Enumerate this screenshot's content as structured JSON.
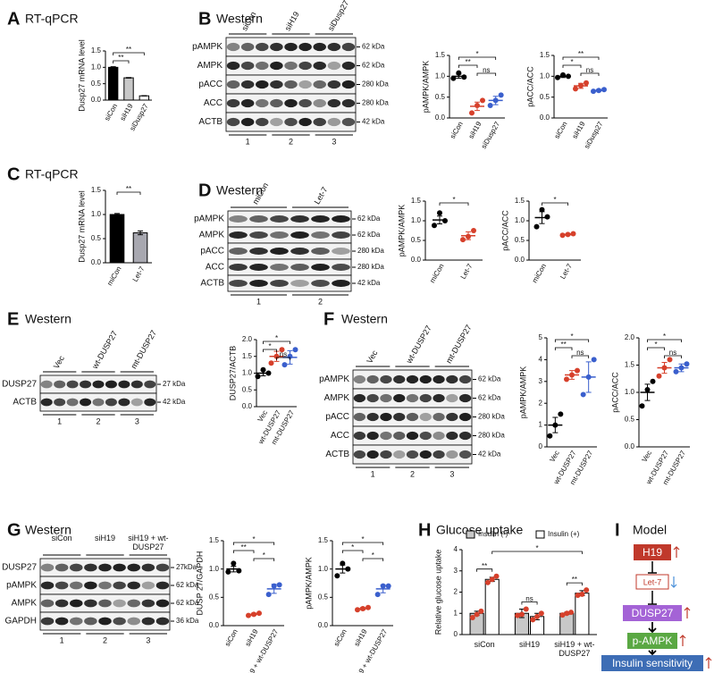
{
  "panels": [
    {
      "letter": "A",
      "title": "RT-qPCR"
    },
    {
      "letter": "B",
      "title": "Western"
    },
    {
      "letter": "C",
      "title": "RT-qPCR"
    },
    {
      "letter": "D",
      "title": "Western"
    },
    {
      "letter": "E",
      "title": "Western"
    },
    {
      "letter": "F",
      "title": "Western"
    },
    {
      "letter": "G",
      "title": "Western"
    },
    {
      "letter": "H",
      "title": "Glucose uptake"
    },
    {
      "letter": "I",
      "title": "Model"
    }
  ],
  "blots": [
    {
      "lanes": [
        "siCon",
        "siH19",
        "siDusp27"
      ],
      "rows": [
        {
          "name": "pAMPK",
          "kda": "62 kDa"
        },
        {
          "name": "AMPK",
          "kda": "62 kDa"
        },
        {
          "name": "pACC",
          "kda": "280 kDa"
        },
        {
          "name": "ACC",
          "kda": "280 kDa"
        },
        {
          "name": "ACTB",
          "kda": "42 kDa"
        }
      ],
      "numbers": [
        "1",
        "2",
        "3"
      ]
    },
    {
      "lanes": [
        "miCon",
        "Let-7"
      ],
      "rows": [
        {
          "name": "pAMPK",
          "kda": "62 kDa"
        },
        {
          "name": "AMPK",
          "kda": "62 kDa"
        },
        {
          "name": "pACC",
          "kda": "280 kDa"
        },
        {
          "name": "ACC",
          "kda": "280 kDa"
        },
        {
          "name": "ACTB",
          "kda": "42 kDa"
        }
      ],
      "numbers": [
        "1",
        "2"
      ]
    },
    {
      "lanes": [
        "Vec",
        "wt-DUSP27",
        "mt-DUSP27"
      ],
      "rows": [
        {
          "name": "DUSP27",
          "kda": "27 kDa"
        },
        {
          "name": "ACTB",
          "kda": "42 kDa"
        }
      ],
      "numbers": [
        "1",
        "2",
        "3"
      ]
    },
    {
      "lanes": [
        "Vec",
        "wt-DUSP27",
        "mt-DUSP27"
      ],
      "rows": [
        {
          "name": "pAMPK",
          "kda": "62 kDa"
        },
        {
          "name": "AMPK",
          "kda": "62 kDa"
        },
        {
          "name": "pACC",
          "kda": "280 kDa"
        },
        {
          "name": "ACC",
          "kda": "280 kDa"
        },
        {
          "name": "ACTB",
          "kda": "42 kDa"
        }
      ],
      "numbers": [
        "1",
        "2",
        "3"
      ]
    },
    {
      "lanes": [
        "siCon",
        "siH19",
        "siH19 + wt-DUSP27"
      ],
      "rows": [
        {
          "name": "DUSP27",
          "kda": "27kDa"
        },
        {
          "name": "pAMPK",
          "kda": "62 kDa"
        },
        {
          "name": "AMPK",
          "kda": "62 kDa"
        },
        {
          "name": "GAPDH",
          "kda": "36 kDa"
        }
      ],
      "numbers": [
        "1",
        "2",
        "3"
      ]
    }
  ],
  "chart_data": [
    {
      "type": "bar",
      "ylabel": "Dusp27 mRNA level",
      "categories": [
        "siCon",
        "siH19",
        "siDusp27"
      ],
      "values": [
        1.0,
        0.68,
        0.13
      ],
      "errors": [
        0.02,
        0.01,
        0.005
      ],
      "colors": [
        "#000000",
        "#c8c8c8",
        "#ffffff"
      ],
      "ylim": [
        0,
        1.5
      ],
      "yticks": [
        {
          "value": 0,
          "label": "0.0"
        },
        {
          "value": 0.5,
          "label": "0.5"
        },
        {
          "value": 1,
          "label": "1.0"
        },
        {
          "value": 1.5,
          "label": "1.5"
        }
      ],
      "annotations": [
        {
          "text": "**",
          "from": 0,
          "to": 2
        },
        {
          "text": "**",
          "from": 0,
          "to": 1
        }
      ]
    },
    {
      "type": "dot",
      "ylabel": "pAMPK/AMPK",
      "categories": [
        "siCon",
        "siH19",
        "siDusp27"
      ],
      "values": [
        1.0,
        0.28,
        0.42
      ],
      "errors": [
        0.05,
        0.1,
        0.1
      ],
      "points": [
        [
          0.95,
          1.08,
          0.98
        ],
        [
          0.12,
          0.3,
          0.42
        ],
        [
          0.3,
          0.42,
          0.55
        ]
      ],
      "colors": [
        "#000000",
        "#d6402b",
        "#3a5fcd"
      ],
      "ylim": [
        0,
        1.5
      ],
      "yticks": [
        {
          "value": 0,
          "label": "0.0"
        },
        {
          "value": 0.5,
          "label": "0.5"
        },
        {
          "value": 1,
          "label": "1.0"
        },
        {
          "value": 1.5,
          "label": "1.5"
        }
      ],
      "annotations": [
        {
          "text": "*",
          "from": 0,
          "to": 2
        },
        {
          "text": "**",
          "from": 0,
          "to": 1
        },
        {
          "text": "ns",
          "from": 1,
          "to": 2
        }
      ]
    },
    {
      "type": "dot",
      "ylabel": "pACC/ACC",
      "categories": [
        "siCon",
        "siH19",
        "siDusp27"
      ],
      "values": [
        1.0,
        0.77,
        0.66
      ],
      "errors": [
        0.03,
        0.06,
        0.02
      ],
      "points": [
        [
          0.97,
          1.03,
          1.0
        ],
        [
          0.7,
          0.78,
          0.84
        ],
        [
          0.64,
          0.66,
          0.68
        ]
      ],
      "colors": [
        "#000000",
        "#d6402b",
        "#3a5fcd"
      ],
      "ylim": [
        0,
        1.5
      ],
      "yticks": [
        {
          "value": 0,
          "label": "0.0"
        },
        {
          "value": 0.5,
          "label": "0.5"
        },
        {
          "value": 1,
          "label": "1.0"
        },
        {
          "value": 1.5,
          "label": "1.5"
        }
      ],
      "annotations": [
        {
          "text": "**",
          "from": 0,
          "to": 2
        },
        {
          "text": "*",
          "from": 0,
          "to": 1
        },
        {
          "text": "ns",
          "from": 1,
          "to": 2
        }
      ]
    },
    {
      "type": "bar",
      "ylabel": "Dusp27 mRNA level",
      "categories": [
        "miCon",
        "Let-7"
      ],
      "values": [
        1.0,
        0.62
      ],
      "errors": [
        0.02,
        0.04
      ],
      "colors": [
        "#000000",
        "#a8a8b0"
      ],
      "ylim": [
        0,
        1.5
      ],
      "yticks": [
        {
          "value": 0,
          "label": "0.0"
        },
        {
          "value": 0.5,
          "label": "0.5"
        },
        {
          "value": 1,
          "label": "1.0"
        },
        {
          "value": 1.5,
          "label": "1.5"
        }
      ],
      "annotations": [
        {
          "text": "**",
          "from": 0,
          "to": 1
        }
      ]
    },
    {
      "type": "dot",
      "ylabel": "pAMPK/AMPK",
      "categories": [
        "miCon",
        "Let-7"
      ],
      "values": [
        1.02,
        0.62
      ],
      "errors": [
        0.1,
        0.1
      ],
      "points": [
        [
          0.88,
          1.2,
          1.0
        ],
        [
          0.52,
          0.6,
          0.75
        ]
      ],
      "colors": [
        "#000000",
        "#d6402b"
      ],
      "ylim": [
        0,
        1.5
      ],
      "yticks": [
        {
          "value": 0,
          "label": "0.0"
        },
        {
          "value": 0.5,
          "label": "0.5"
        },
        {
          "value": 1,
          "label": "1.0"
        },
        {
          "value": 1.5,
          "label": "1.5"
        }
      ],
      "annotations": [
        {
          "text": "*",
          "from": 0,
          "to": 1
        }
      ]
    },
    {
      "type": "dot",
      "ylabel": "pACC/ACC",
      "categories": [
        "miCon",
        "Let-7"
      ],
      "values": [
        1.08,
        0.65
      ],
      "errors": [
        0.15,
        0.02
      ],
      "points": [
        [
          0.85,
          1.28,
          1.1
        ],
        [
          0.63,
          0.65,
          0.67
        ]
      ],
      "colors": [
        "#000000",
        "#d6402b"
      ],
      "ylim": [
        0,
        1.5
      ],
      "yticks": [
        {
          "value": 0,
          "label": "0.0"
        },
        {
          "value": 0.5,
          "label": "0.5"
        },
        {
          "value": 1,
          "label": "1.0"
        },
        {
          "value": 1.5,
          "label": "1.5"
        }
      ],
      "annotations": [
        {
          "text": "*",
          "from": 0,
          "to": 1
        }
      ]
    },
    {
      "type": "dot",
      "ylabel": "DUSP27/ACTB",
      "categories": [
        "Vec",
        "wt-DUSP27",
        "mt-DUSP27"
      ],
      "values": [
        1.0,
        1.5,
        1.47
      ],
      "errors": [
        0.08,
        0.15,
        0.2
      ],
      "points": [
        [
          0.9,
          1.1,
          1.0
        ],
        [
          1.3,
          1.5,
          1.7
        ],
        [
          1.25,
          1.5,
          1.7
        ]
      ],
      "colors": [
        "#000000",
        "#d6402b",
        "#3a5fcd"
      ],
      "ylim": [
        0,
        2
      ],
      "yticks": [
        {
          "value": 0,
          "label": "0.0"
        },
        {
          "value": 0.5,
          "label": "0.5"
        },
        {
          "value": 1,
          "label": "1.0"
        },
        {
          "value": 1.5,
          "label": "1.5"
        },
        {
          "value": 2,
          "label": "2.0"
        }
      ],
      "annotations": [
        {
          "text": "*",
          "from": 0,
          "to": 2
        },
        {
          "text": "*",
          "from": 0,
          "to": 1
        },
        {
          "text": "ns",
          "from": 1,
          "to": 2
        }
      ]
    },
    {
      "type": "dot",
      "ylabel": "pAMPK/AMPK",
      "categories": [
        "Vec",
        "wt-DUSP27",
        "mt-DUSP27"
      ],
      "values": [
        1.0,
        3.3,
        3.2
      ],
      "errors": [
        0.35,
        0.2,
        0.7
      ],
      "points": [
        [
          0.5,
          1.0,
          1.5
        ],
        [
          3.1,
          3.3,
          3.5
        ],
        [
          2.4,
          3.2,
          4.0
        ]
      ],
      "colors": [
        "#000000",
        "#d6402b",
        "#3a5fcd"
      ],
      "ylim": [
        0,
        5
      ],
      "yticks": [
        0,
        1,
        2,
        3,
        4,
        5
      ],
      "annotations": [
        {
          "text": "*",
          "from": 0,
          "to": 2
        },
        {
          "text": "**",
          "from": 0,
          "to": 1
        },
        {
          "text": "ns",
          "from": 1,
          "to": 2
        }
      ]
    },
    {
      "type": "dot",
      "ylabel": "pACC/ACC",
      "categories": [
        "Vec",
        "wt-DUSP27",
        "mt-DUSP27"
      ],
      "values": [
        1.0,
        1.45,
        1.45
      ],
      "errors": [
        0.15,
        0.1,
        0.07
      ],
      "points": [
        [
          0.75,
          1.05,
          1.2
        ],
        [
          1.3,
          1.45,
          1.6
        ],
        [
          1.38,
          1.45,
          1.52
        ]
      ],
      "colors": [
        "#000000",
        "#d6402b",
        "#3a5fcd"
      ],
      "ylim": [
        0,
        2
      ],
      "yticks": [
        {
          "value": 0,
          "label": "0.0"
        },
        {
          "value": 0.5,
          "label": "0.5"
        },
        {
          "value": 1,
          "label": "1.0"
        },
        {
          "value": 1.5,
          "label": "1.5"
        },
        {
          "value": 2,
          "label": "2.0"
        }
      ],
      "annotations": [
        {
          "text": "*",
          "from": 0,
          "to": 2
        },
        {
          "text": "*",
          "from": 0,
          "to": 1
        },
        {
          "text": "ns",
          "from": 1,
          "to": 2
        }
      ]
    },
    {
      "type": "dot",
      "ylabel": "DUSP 27/GAPDH",
      "categories": [
        "siCon",
        "siH19",
        "siH19 + wt-DUSP27"
      ],
      "values": [
        1.0,
        0.2,
        0.65
      ],
      "errors": [
        0.05,
        0.02,
        0.08
      ],
      "points": [
        [
          0.95,
          1.1,
          0.97
        ],
        [
          0.18,
          0.2,
          0.22
        ],
        [
          0.55,
          0.7,
          0.72
        ]
      ],
      "colors": [
        "#000000",
        "#d6402b",
        "#3a5fcd"
      ],
      "ylim": [
        0,
        1.5
      ],
      "yticks": [
        {
          "value": 0,
          "label": "0.0"
        },
        {
          "value": 0.5,
          "label": "0.5"
        },
        {
          "value": 1,
          "label": "1.0"
        },
        {
          "value": 1.5,
          "label": "1.5"
        }
      ],
      "annotations": [
        {
          "text": "*",
          "from": 0,
          "to": 2
        },
        {
          "text": "**",
          "from": 0,
          "to": 1
        },
        {
          "text": "*",
          "from": 1,
          "to": 2
        }
      ]
    },
    {
      "type": "dot",
      "ylabel": "pAMPK/AMPK",
      "categories": [
        "siCon",
        "siH19",
        "siH19 + wt-DUSP27"
      ],
      "values": [
        1.0,
        0.3,
        0.65
      ],
      "errors": [
        0.07,
        0.02,
        0.07
      ],
      "points": [
        [
          0.88,
          1.1,
          1.0
        ],
        [
          0.28,
          0.3,
          0.32
        ],
        [
          0.55,
          0.7,
          0.7
        ]
      ],
      "colors": [
        "#000000",
        "#d6402b",
        "#3a5fcd"
      ],
      "ylim": [
        0,
        1.5
      ],
      "yticks": [
        {
          "value": 0,
          "label": "0.0"
        },
        {
          "value": 0.5,
          "label": "0.5"
        },
        {
          "value": 1,
          "label": "1.0"
        },
        {
          "value": 1.5,
          "label": "1.5"
        }
      ],
      "annotations": [
        {
          "text": "*",
          "from": 0,
          "to": 2
        },
        {
          "text": "*",
          "from": 0,
          "to": 1
        },
        {
          "text": "*",
          "from": 1,
          "to": 2
        }
      ]
    },
    {
      "type": "grouped_bar",
      "ylabel": "Relative glucose uptake",
      "categories": [
        "siCon",
        "siH19",
        "siH19 + wt-DUSP27"
      ],
      "point_color": "#d6402b",
      "series": [
        {
          "name": "Insulin (-)",
          "color": "#c8c8c8",
          "values": [
            1.0,
            1.0,
            1.0
          ],
          "errors": [
            0.1,
            0.2,
            0.05
          ],
          "points": [
            [
              0.8,
              0.95,
              1.1
            ],
            [
              0.9,
              0.95,
              1.2
            ],
            [
              0.92,
              1.0,
              1.05
            ]
          ]
        },
        {
          "name": "Insulin (+)",
          "color": "#ffffff",
          "values": [
            2.6,
            0.85,
            1.95
          ],
          "errors": [
            0.1,
            0.15,
            0.12
          ],
          "points": [
            [
              2.45,
              2.6,
              2.75
            ],
            [
              0.7,
              0.85,
              1.0
            ],
            [
              1.85,
              1.9,
              2.1
            ]
          ]
        }
      ],
      "ylim": [
        0,
        4
      ],
      "yticks": [
        0,
        1,
        2,
        3,
        4
      ],
      "annotations": [
        {
          "text": "*",
          "from": [
            0,
            1
          ],
          "to": [
            2,
            1
          ]
        },
        {
          "text": "**",
          "from": [
            0,
            0
          ],
          "to": [
            0,
            1
          ]
        },
        {
          "text": "ns",
          "from": [
            1,
            0
          ],
          "to": [
            1,
            1
          ]
        },
        {
          "text": "**",
          "from": [
            2,
            0
          ],
          "to": [
            2,
            1
          ]
        }
      ]
    }
  ],
  "model": {
    "nodes": [
      "H19",
      "Let-7",
      "DUSP27",
      "p-AMPK",
      "Insulin sensitivity"
    ]
  }
}
